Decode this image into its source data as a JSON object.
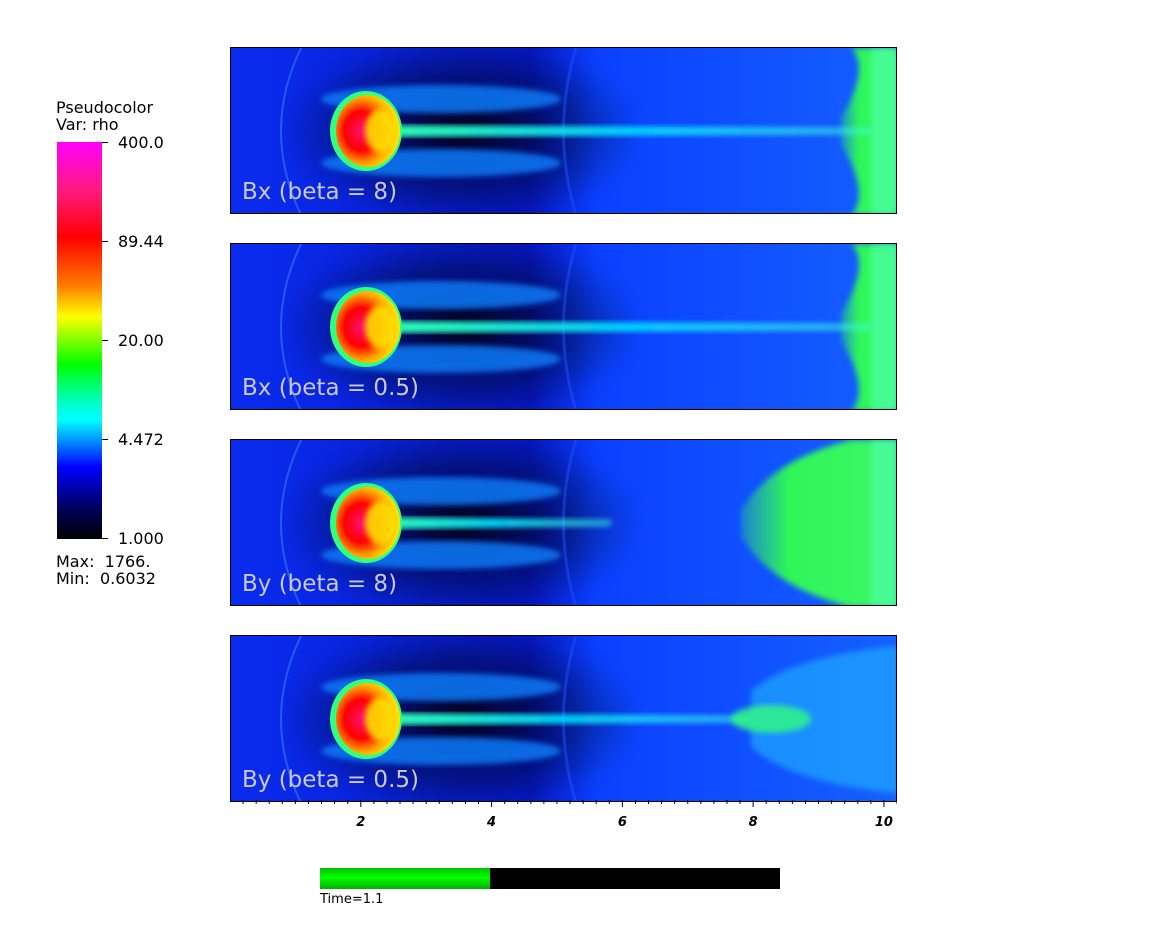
{
  "legend": {
    "title_line1": "Pseudocolor",
    "title_line2": "Var: rho",
    "ticks": [
      "400.0",
      "89.44",
      "20.00",
      "4.472",
      "1.000"
    ],
    "max_text": "Max:  1766.",
    "min_text": "Min:  0.6032"
  },
  "colors": {
    "background_blue": "#0a3cff",
    "jet_core": "#ff0033",
    "tail_green": "#22ff44"
  },
  "chart_data": {
    "type": "heatmap",
    "variable": "rho",
    "colorbar": {
      "scale": "log",
      "range": [
        1.0,
        400.0
      ],
      "ticks": [
        400.0,
        89.44,
        20.0,
        4.472,
        1.0
      ]
    },
    "data_max": 1766,
    "data_min": 0.6032,
    "xlim": [
      0,
      10.2
    ],
    "x_ticks": [
      2,
      4,
      6,
      8,
      10
    ],
    "panels": [
      {
        "label": "Bx (beta = 8)",
        "variant": 0
      },
      {
        "label": "Bx (beta = 0.5)",
        "variant": 1
      },
      {
        "label": "By (beta = 8)",
        "variant": 2
      },
      {
        "label": "By (beta = 0.5)",
        "variant": 3
      }
    ]
  },
  "time": {
    "label": "Time=1.1",
    "progress": 0.37
  }
}
